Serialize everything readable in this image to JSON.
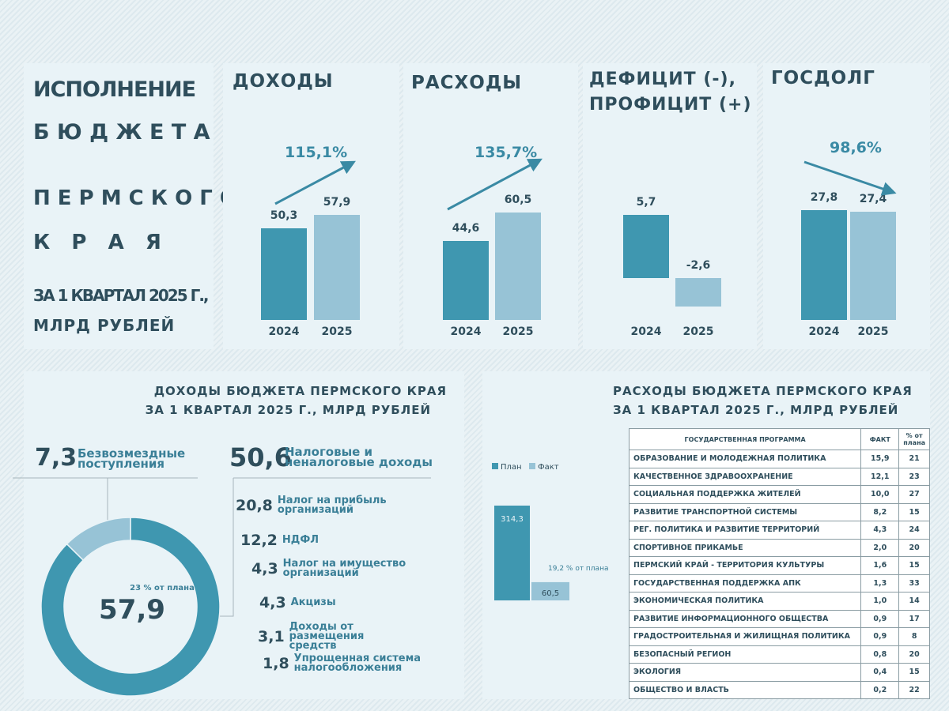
{
  "title": {
    "line1": "ИСПОЛНЕНИЕ",
    "line2": "Б Ю Д Ж Е Т А",
    "line3": "П Е Р М С К О Г О",
    "line4": "К   Р   А   Я",
    "line5": "ЗА 1 КВАРТАЛ 2025 Г.,",
    "line6": "МЛРД РУБЛЕЙ"
  },
  "colors": {
    "dark": "#3f97b0",
    "light": "#97c3d6",
    "text": "#2f4e5c"
  },
  "chart_data": [
    {
      "type": "bar",
      "title": "ДОХОДЫ",
      "categories": [
        "2024",
        "2025"
      ],
      "values": [
        50.3,
        57.9
      ],
      "labels": [
        "50,3",
        "57,9"
      ],
      "change": "115,1%",
      "trend": "up"
    },
    {
      "type": "bar",
      "title": "РАСХОДЫ",
      "categories": [
        "2024",
        "2025"
      ],
      "values": [
        44.6,
        60.5
      ],
      "labels": [
        "44,6",
        "60,5"
      ],
      "change": "135,7%",
      "trend": "up"
    },
    {
      "type": "bar",
      "title": "ДЕФИЦИТ (-), ПРОФИЦИТ (+)",
      "title1": "ДЕФИЦИТ (-),",
      "title2": "ПРОФИЦИТ (+)",
      "categories": [
        "2024",
        "2025"
      ],
      "values": [
        5.7,
        -2.6
      ],
      "labels": [
        "5,7",
        "-2,6"
      ]
    },
    {
      "type": "bar",
      "title": "ГОСДОЛГ",
      "categories": [
        "2024",
        "2025"
      ],
      "values": [
        27.8,
        27.4
      ],
      "labels": [
        "27,8",
        "27,4"
      ],
      "change": "98,6%",
      "trend": "down"
    },
    {
      "type": "pie",
      "title": "ДОХОДЫ БЮДЖЕТА ПЕРМСКОГО КРАЯ ЗА 1 КВАРТАЛ 2025 Г., МЛРД РУБЛЕЙ",
      "title1": "ДОХОДЫ БЮДЖЕТА ПЕРМСКОГО КРАЯ",
      "title2": "ЗА 1 КВАРТАЛ 2025 Г., МЛРД РУБЛЕЙ",
      "total": "57,9",
      "total_note": "23 % от плана",
      "slices": [
        {
          "name": "Налоговые и неналоговые доходы",
          "value": 50.6,
          "label": "50,6",
          "name1": "Налоговые и",
          "name2": "неналоговые доходы"
        },
        {
          "name": "Безвозмездные поступления",
          "value": 7.3,
          "label": "7,3",
          "name1": "Безвозмездные",
          "name2": "поступления"
        }
      ],
      "breakdown": [
        {
          "value": "20,8",
          "name1": "Налог на прибыль",
          "name2": "организаций"
        },
        {
          "value": "12,2",
          "name1": "НДФЛ",
          "name2": ""
        },
        {
          "value": "4,3",
          "name1": "Налог на имущество",
          "name2": "организаций"
        },
        {
          "value": "4,3",
          "name1": "Акцизы",
          "name2": ""
        },
        {
          "value": "3,1",
          "name1": "Доходы от размещения",
          "name2": "средств"
        },
        {
          "value": "1,8",
          "name1": "Упрощенная система",
          "name2": "налогообложения"
        }
      ]
    },
    {
      "type": "bar",
      "title": "РАСХОДЫ БЮДЖЕТА ПЕРМСКОГО КРАЯ ЗА 1 КВАРТАЛ 2025 Г., МЛРД РУБЛЕЙ",
      "title1": "РАСХОДЫ БЮДЖЕТА ПЕРМСКОГО КРАЯ",
      "title2": "ЗА 1 КВАРТАЛ 2025 Г., МЛРД РУБЛЕЙ",
      "legend": [
        "План",
        "Факт"
      ],
      "values": [
        314.3,
        60.5
      ],
      "labels": [
        "314,3",
        "60,5"
      ],
      "annotation": "19,2 % от плана"
    },
    {
      "type": "table",
      "columns": [
        "ГОСУДАРСТВЕННАЯ ПРОГРАММА",
        "ФАКТ",
        "% от плана"
      ],
      "rows": [
        [
          "ОБРАЗОВАНИЕ И МОЛОДЕЖНАЯ ПОЛИТИКА",
          "15,9",
          "21"
        ],
        [
          "КАЧЕСТВЕННОЕ ЗДРАВООХРАНЕНИЕ",
          "12,1",
          "23"
        ],
        [
          "СОЦИАЛЬНАЯ ПОДДЕРЖКА ЖИТЕЛЕЙ",
          "10,0",
          "27"
        ],
        [
          "РАЗВИТИЕ ТРАНСПОРТНОЙ СИСТЕМЫ",
          "8,2",
          "15"
        ],
        [
          "РЕГ. ПОЛИТИКА И РАЗВИТИЕ ТЕРРИТОРИЙ",
          "4,3",
          "24"
        ],
        [
          "СПОРТИВНОЕ ПРИКАМЬЕ",
          "2,0",
          "20"
        ],
        [
          "ПЕРМСКИЙ КРАЙ - ТЕРРИТОРИЯ КУЛЬТУРЫ",
          "1,6",
          "15"
        ],
        [
          "ГОСУДАРСТВЕННАЯ ПОДДЕРЖКА АПК",
          "1,3",
          "33"
        ],
        [
          "ЭКОНОМИЧЕСКАЯ ПОЛИТИКА",
          "1,0",
          "14"
        ],
        [
          "РАЗВИТИЕ ИНФОРМАЦИОННОГО ОБЩЕСТВА",
          "0,9",
          "17"
        ],
        [
          "ГРАДОСТРОИТЕЛЬНАЯ И ЖИЛИЩНАЯ ПОЛИТИКА",
          "0,9",
          "8"
        ],
        [
          "БЕЗОПАСНЫЙ РЕГИОН",
          "0,8",
          "20"
        ],
        [
          "ЭКОЛОГИЯ",
          "0,4",
          "15"
        ],
        [
          "ОБЩЕСТВО И ВЛАСТЬ",
          "0,2",
          "22"
        ]
      ]
    }
  ]
}
